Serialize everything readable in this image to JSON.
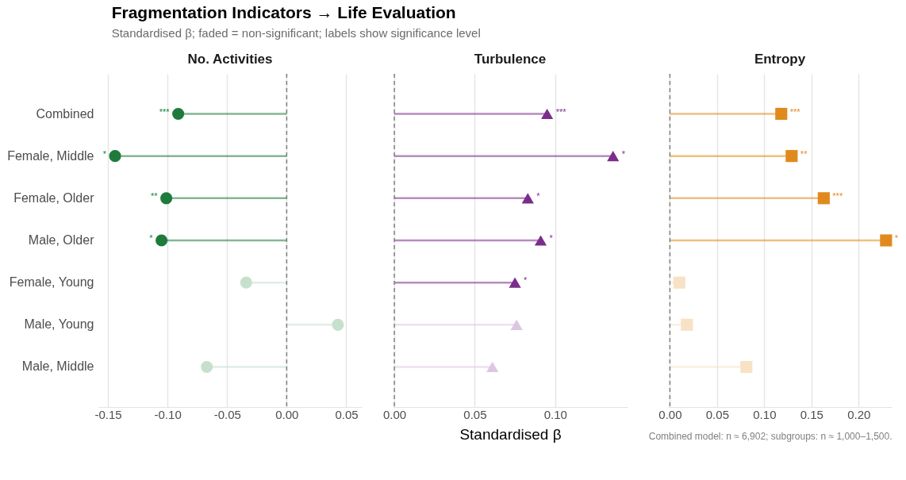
{
  "chart_data": [
    {
      "type": "lollipop",
      "title": "No. Activities",
      "orientation": "horizontal",
      "marker": "circle",
      "grid": "x",
      "categories": [
        "Combined",
        "Female, Middle",
        "Female, Older",
        "Male, Older",
        "Female, Young",
        "Male, Young",
        "Male, Middle"
      ],
      "values": [
        -0.091,
        -0.144,
        -0.101,
        -0.105,
        -0.034,
        0.043,
        -0.067
      ],
      "colors": [
        "#1e7b3c",
        "#1e7b3c",
        "#1e7b3c",
        "#1e7b3c",
        "#c6e0cd",
        "#c6e0cd",
        "#c6e0cd"
      ],
      "value_labels": [
        "***",
        "*",
        "**",
        "*",
        null,
        null,
        null
      ],
      "xlim": [
        -0.158,
        0.063
      ],
      "xticks": [
        -0.15,
        {
          "value": -0.1,
          "label": "-0.10"
        },
        -0.05,
        {
          "value": 0,
          "label": "0.00"
        },
        0.05
      ],
      "ref_lines": [
        {
          "axis": "x",
          "value": 0,
          "label": null,
          "color": "#808080",
          "line_style": "dashed"
        }
      ],
      "annotations": [
        "Fragmentation Indicators → Life Evaluation",
        "Standardised β; faded = non-significant; labels show significance level"
      ]
    },
    {
      "type": "lollipop",
      "title": "Turbulence",
      "orientation": "horizontal",
      "marker": "triangle",
      "grid": "x",
      "tick_labels": "x",
      "xlabel": "Standardised β",
      "values": [
        0.095,
        0.136,
        0.083,
        0.091,
        0.075,
        0.076,
        0.061
      ],
      "colors": [
        "#7b2d8b",
        "#7b2d8b",
        "#7b2d8b",
        "#7b2d8b",
        "#7b2d8b",
        "#dcc7e3",
        "#dcc7e3"
      ],
      "value_labels": [
        "***",
        "*",
        "*",
        "*",
        "*",
        null,
        null
      ],
      "xlim": [
        -0.001,
        0.145
      ],
      "xticks": [
        {
          "value": 0,
          "label": "0.00"
        },
        0.05,
        {
          "value": 0.1,
          "label": "0.10"
        }
      ],
      "ref_lines": [
        {
          "axis": "x",
          "value": 0,
          "label": null,
          "color": "#808080",
          "line_style": "dashed"
        }
      ]
    },
    {
      "type": "lollipop",
      "title": "Entropy",
      "orientation": "horizontal",
      "marker": "square",
      "grid": "x",
      "tick_labels": "x",
      "values": [
        0.118,
        0.129,
        0.163,
        0.229,
        0.01,
        0.018,
        0.081
      ],
      "colors": [
        "#e08a1e",
        "#e08a1e",
        "#e08a1e",
        "#e08a1e",
        "#f8e2c6",
        "#f8e2c6",
        "#f8e2c6"
      ],
      "value_labels": [
        "***",
        "**",
        "***",
        "*",
        null,
        null,
        null
      ],
      "xlim": [
        -0.002,
        0.235
      ],
      "xticks": [
        {
          "value": 0,
          "label": "0.00"
        },
        0.05,
        {
          "value": 0.1,
          "label": "0.10"
        },
        0.15,
        {
          "value": 0.2,
          "label": "0.20"
        }
      ],
      "ref_lines": [
        {
          "axis": "x",
          "value": 0,
          "label": null,
          "color": "#808080",
          "line_style": "dashed"
        }
      ],
      "annotations": [
        "Combined model: n ≈ 6,902; subgroups: n ≈ 1,000–1,500."
      ]
    }
  ]
}
